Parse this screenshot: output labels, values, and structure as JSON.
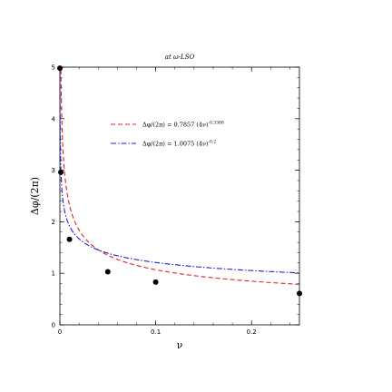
{
  "chart_data": {
    "type": "line",
    "title": "at ω-LSO",
    "xlabel": "ν",
    "ylabel": "Δφ/(2π)",
    "xlim": [
      0,
      0.25
    ],
    "ylim": [
      0,
      5
    ],
    "x_ticks": [
      0,
      0.1,
      0.2
    ],
    "x_tick_labels": [
      "0",
      "0.1",
      "0.2"
    ],
    "y_ticks": [
      0,
      1,
      2,
      3,
      4,
      5
    ],
    "y_tick_labels": [
      "0",
      "1",
      "2",
      "3",
      "4",
      "5"
    ],
    "grid": false,
    "legend_position": "top-center",
    "series": [
      {
        "legend_main": "Δφ/(2π) = 0.7857 (4ν)",
        "legend_exponent": "-0.3368",
        "formula": {
          "a": 0.7857,
          "b": -0.3368
        },
        "color": "#e0202a",
        "dash": "dashed"
      },
      {
        "legend_main": "Δφ/(2π) = 1.0075 (4ν)",
        "legend_exponent": "-0.2",
        "formula": {
          "a": 1.0075,
          "b": -0.2
        },
        "color": "#2020d8",
        "dash": "dash-dot"
      }
    ],
    "points": [
      {
        "x": 0.0,
        "y": 4.98
      },
      {
        "x": 0.001,
        "y": 2.96
      },
      {
        "x": 0.01,
        "y": 1.66
      },
      {
        "x": 0.05,
        "y": 1.03
      },
      {
        "x": 0.1,
        "y": 0.83
      },
      {
        "x": 0.25,
        "y": 0.61
      }
    ]
  }
}
